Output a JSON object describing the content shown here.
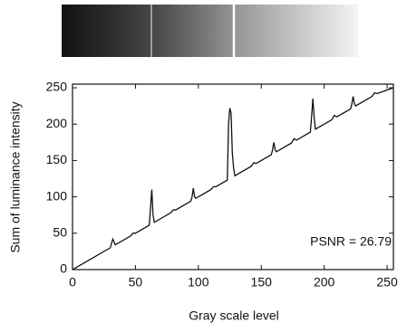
{
  "chart_data": {
    "type": "line",
    "x_label": "Gray scale level",
    "y_label": "Sum of luminance intensity",
    "annotation": "PSNR = 26.79",
    "x": [
      0,
      16,
      30,
      32,
      34,
      46,
      48,
      50,
      61,
      62,
      63,
      64,
      65,
      78,
      80,
      82,
      94,
      95,
      96,
      97,
      98,
      110,
      112,
      114,
      123,
      124,
      125,
      126,
      127,
      128,
      129,
      142,
      144,
      146,
      158,
      159,
      160,
      161,
      162,
      174,
      176,
      178,
      189,
      190,
      191,
      192,
      193,
      206,
      208,
      210,
      221,
      222,
      223,
      224,
      225,
      238,
      240,
      242,
      255
    ],
    "series": [
      {
        "color": "#111111",
        "values": [
          0,
          16,
          30,
          42,
          34,
          46,
          50,
          50,
          61,
          85,
          110,
          75,
          65,
          78,
          82,
          82,
          94,
          100,
          112,
          100,
          98,
          110,
          114,
          114,
          123,
          200,
          222,
          215,
          160,
          140,
          129,
          142,
          147,
          146,
          158,
          165,
          175,
          165,
          162,
          174,
          180,
          178,
          189,
          210,
          235,
          210,
          193,
          206,
          212,
          210,
          221,
          228,
          238,
          228,
          225,
          238,
          243,
          242,
          250
        ]
      }
    ],
    "xlim": [
      0,
      255
    ],
    "ylim": [
      0,
      255
    ],
    "xticks": [
      0,
      50,
      100,
      150,
      200,
      250
    ],
    "yticks": [
      0,
      50,
      100,
      150,
      200,
      250
    ]
  }
}
